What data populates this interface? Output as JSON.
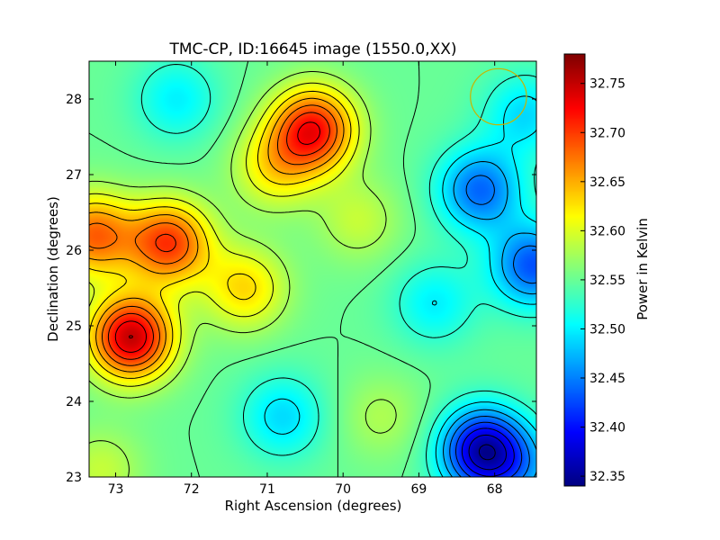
{
  "chart_data": {
    "type": "heatmap",
    "title": "TMC-CP, ID:16645 image (1550.0,XX)",
    "xlabel": "Right Ascension (degrees)",
    "ylabel": "Declination (degrees)",
    "colorbar_label": "Power in Kelvin",
    "xlim": [
      73.35,
      67.45
    ],
    "ylim": [
      23.0,
      28.5
    ],
    "x_ticks": [
      73,
      72,
      71,
      70,
      69,
      68
    ],
    "y_ticks": [
      23,
      24,
      25,
      26,
      27,
      28
    ],
    "colorbar_range": [
      32.34,
      32.78
    ],
    "colorbar_ticks": [
      "32.35",
      "32.40",
      "32.45",
      "32.50",
      "32.55",
      "32.60",
      "32.65",
      "32.70",
      "32.75"
    ],
    "colormap": "jet",
    "contour_color": "#000000",
    "beam_circle": {
      "ra": 67.95,
      "dec": 28.03,
      "radius_deg": 0.37,
      "color": "#c8b400"
    },
    "field_components": [
      {
        "ra": 72.8,
        "dec": 24.85,
        "value": 0.2
      },
      {
        "ra": 72.3,
        "dec": 26.1,
        "value": 0.15
      },
      {
        "ra": 73.3,
        "dec": 26.2,
        "value": 0.13
      },
      {
        "ra": 71.3,
        "dec": 25.5,
        "value": 0.08
      },
      {
        "ra": 70.4,
        "dec": 27.6,
        "value": 0.17
      },
      {
        "ra": 70.9,
        "dec": 27.1,
        "value": 0.07
      },
      {
        "ra": 69.8,
        "dec": 26.4,
        "value": 0.04
      },
      {
        "ra": 72.2,
        "dec": 28.0,
        "value": -0.05
      },
      {
        "ra": 69.5,
        "dec": 23.8,
        "value": 0.03
      },
      {
        "ra": 70.8,
        "dec": 23.8,
        "value": -0.06
      },
      {
        "ra": 73.2,
        "dec": 23.1,
        "value": 0.04
      },
      {
        "ra": 68.15,
        "dec": 23.35,
        "value": -0.19
      },
      {
        "ra": 67.6,
        "dec": 23.1,
        "value": -0.05
      },
      {
        "ra": 68.2,
        "dec": 26.8,
        "value": -0.11
      },
      {
        "ra": 67.5,
        "dec": 25.8,
        "value": -0.12
      },
      {
        "ra": 67.6,
        "dec": 27.8,
        "value": -0.06
      },
      {
        "ra": 68.8,
        "dec": 25.3,
        "value": -0.05
      }
    ],
    "field_base": 32.55
  }
}
